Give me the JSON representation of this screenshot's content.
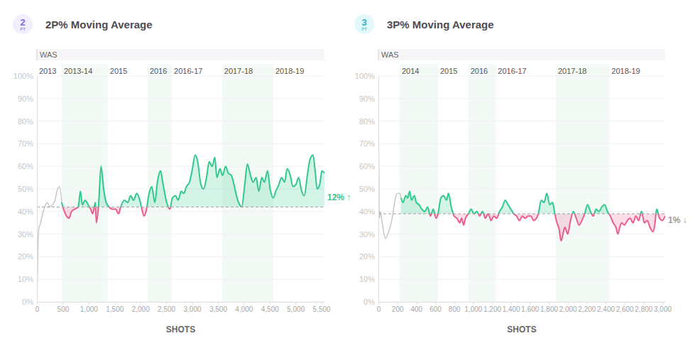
{
  "chart_data": [
    {
      "type": "line",
      "title": "2P% Moving Average",
      "badge": {
        "number": "2",
        "unit": "PT"
      },
      "team": "WAS",
      "x_label": "SHOTS",
      "xlim": [
        0,
        5560
      ],
      "xticks": [
        0,
        500,
        {
          "value": 1000,
          "label": "1,000"
        },
        {
          "value": 1500,
          "label": "1,500"
        },
        {
          "value": 2000,
          "label": "2,000"
        },
        {
          "value": 2500,
          "label": "2,500"
        },
        {
          "value": 3000,
          "label": "3,000"
        },
        {
          "value": 3500,
          "label": "3,500"
        },
        {
          "value": 4000,
          "label": "4,000"
        },
        {
          "value": 4500,
          "label": "4,500"
        },
        {
          "value": 5000,
          "label": "5,000"
        },
        {
          "value": 5500,
          "label": "5,500"
        }
      ],
      "ylim": [
        0,
        100
      ],
      "yticks": [
        {
          "value": 0,
          "label": "0%"
        },
        {
          "value": 10,
          "label": "10%"
        },
        {
          "value": 20,
          "label": "20%"
        },
        {
          "value": 30,
          "label": "30%"
        },
        {
          "value": 40,
          "label": "40%"
        },
        {
          "value": 50,
          "label": "50%"
        },
        {
          "value": 60,
          "label": "60%"
        },
        {
          "value": 70,
          "label": "70%"
        },
        {
          "value": 80,
          "label": "80%"
        },
        {
          "value": 90,
          "label": "90%"
        },
        {
          "value": 100,
          "label": "100%"
        }
      ],
      "grid": true,
      "baseline": 42,
      "annotation": {
        "text": "12% ↑",
        "color": "#2fc88d"
      },
      "bands": [
        {
          "label": "2013",
          "start": 0,
          "end": 480
        },
        {
          "label": "2013-14",
          "start": 480,
          "end": 1370
        },
        {
          "label": "2015",
          "start": 1370,
          "end": 2140
        },
        {
          "label": "2016",
          "start": 2140,
          "end": 2610
        },
        {
          "label": "2016-17",
          "start": 2610,
          "end": 3580
        },
        {
          "label": "2017-18",
          "start": 3580,
          "end": 4570
        },
        {
          "label": "2018-19",
          "start": 4570,
          "end": 5560
        }
      ],
      "series": [
        {
          "color": "#c6c6c6",
          "x": [
            0,
            20,
            40,
            60,
            100,
            150,
            200,
            250,
            300,
            350,
            400,
            440,
            480
          ],
          "values": [
            0,
            25,
            33,
            34,
            38,
            42,
            44,
            42,
            43,
            45,
            50,
            51,
            44
          ]
        },
        {
          "colors": [
            "#2fc88d",
            "#eb5c8d"
          ],
          "x": [
            480,
            490,
            550,
            620,
            670,
            730,
            800,
            840,
            880,
            930,
            990,
            1040,
            1080,
            1130,
            1150,
            1190,
            1240,
            1290,
            1340,
            1400,
            1450,
            1520,
            1580,
            1620,
            1690,
            1760,
            1810,
            1870,
            1930,
            1990,
            2030,
            2070,
            2110,
            2170,
            2220,
            2280,
            2330,
            2390,
            2440,
            2510,
            2570,
            2620,
            2680,
            2730,
            2790,
            2840,
            2890,
            2950,
            3000,
            3060,
            3110,
            3170,
            3220,
            3280,
            3330,
            3390,
            3440,
            3480,
            3540,
            3590,
            3650,
            3700,
            3760,
            3810,
            3870,
            3920,
            3960,
            4020,
            4070,
            4130,
            4180,
            4240,
            4290,
            4350,
            4400,
            4460,
            4510,
            4570,
            4620,
            4680,
            4730,
            4790,
            4840,
            4900,
            4950,
            5010,
            5060,
            5120,
            5170,
            5230,
            5280,
            5340,
            5380,
            5420,
            5470,
            5510,
            5560
          ],
          "values": [
            44,
            43,
            39,
            37,
            40,
            41,
            42,
            49,
            43,
            45,
            43,
            41,
            39,
            44,
            35,
            42,
            60,
            50,
            44,
            42,
            41,
            41,
            39,
            42,
            45,
            44,
            47,
            45,
            48,
            45,
            41,
            38,
            40,
            48,
            51,
            44,
            53,
            58,
            52,
            44,
            41,
            46,
            47,
            45,
            49,
            48,
            51,
            53,
            58,
            65,
            62,
            52,
            50,
            55,
            62,
            60,
            64,
            55,
            59,
            56,
            60,
            57,
            56,
            52,
            46,
            43,
            42,
            52,
            61,
            56,
            53,
            55,
            49,
            55,
            53,
            58,
            50,
            46,
            49,
            52,
            55,
            53,
            59,
            56,
            51,
            52,
            55,
            49,
            47,
            56,
            63,
            65,
            58,
            50,
            52,
            58,
            57
          ]
        }
      ]
    },
    {
      "type": "line",
      "title": "3P% Moving Average",
      "badge": {
        "number": "3",
        "unit": "PT"
      },
      "team": "WAS",
      "x_label": "SHOTS",
      "xlim": [
        0,
        3030
      ],
      "xticks": [
        0,
        200,
        400,
        600,
        800,
        {
          "value": 1000,
          "label": "1,000"
        },
        {
          "value": 1200,
          "label": "1,200"
        },
        {
          "value": 1400,
          "label": "1,400"
        },
        {
          "value": 1600,
          "label": "1,600"
        },
        {
          "value": 1800,
          "label": "1,800"
        },
        {
          "value": 2000,
          "label": "2,000"
        },
        {
          "value": 2200,
          "label": "2,200"
        },
        {
          "value": 2400,
          "label": "2,400"
        },
        {
          "value": 2600,
          "label": "2,600"
        },
        {
          "value": 2800,
          "label": "2,800"
        },
        {
          "value": 3000,
          "label": "3,000"
        }
      ],
      "ylim": [
        0,
        100
      ],
      "yticks": [
        {
          "value": 0,
          "label": "0%"
        },
        {
          "value": 10,
          "label": "10%"
        },
        {
          "value": 20,
          "label": "20%"
        },
        {
          "value": 30,
          "label": "30%"
        },
        {
          "value": 40,
          "label": "40%"
        },
        {
          "value": 50,
          "label": "50%"
        },
        {
          "value": 60,
          "label": "60%"
        },
        {
          "value": 70,
          "label": "70%"
        },
        {
          "value": 80,
          "label": "80%"
        },
        {
          "value": 90,
          "label": "90%"
        },
        {
          "value": 100,
          "label": "100%"
        }
      ],
      "grid": true,
      "baseline": 39,
      "annotation": {
        "text": "1% ↓",
        "color": "#9a9a9a"
      },
      "bands": [
        {
          "label": null,
          "start": 0,
          "end": 225
        },
        {
          "label": "2014",
          "start": 225,
          "end": 630
        },
        {
          "label": "2015",
          "start": 630,
          "end": 950
        },
        {
          "label": "2016",
          "start": 950,
          "end": 1240
        },
        {
          "label": "2016-17",
          "start": 1240,
          "end": 1875
        },
        {
          "label": "2017-18",
          "start": 1875,
          "end": 2440
        },
        {
          "label": "2018-19",
          "start": 2440,
          "end": 3030
        }
      ],
      "series": [
        {
          "color": "#c6c6c6",
          "x": [
            0,
            10,
            20,
            40,
            75,
            100,
            150,
            175,
            200,
            225,
            240
          ],
          "values": [
            100,
            37,
            40,
            35,
            28,
            30,
            38,
            45,
            48,
            48,
            46
          ]
        },
        {
          "colors": [
            "#2fc88d",
            "#eb5c8d"
          ],
          "x": [
            240,
            260,
            290,
            310,
            330,
            350,
            380,
            400,
            430,
            460,
            490,
            520,
            550,
            580,
            610,
            630,
            660,
            690,
            720,
            740,
            770,
            800,
            830,
            860,
            880,
            900,
            920,
            950,
            980,
            1010,
            1040,
            1070,
            1100,
            1130,
            1160,
            1190,
            1220,
            1250,
            1280,
            1310,
            1340,
            1370,
            1400,
            1430,
            1460,
            1490,
            1520,
            1550,
            1580,
            1610,
            1640,
            1670,
            1690,
            1720,
            1750,
            1780,
            1810,
            1840,
            1860,
            1880,
            1910,
            1930,
            1950,
            1970,
            2000,
            2030,
            2060,
            2090,
            2120,
            2150,
            2180,
            2210,
            2240,
            2270,
            2300,
            2330,
            2360,
            2390,
            2420,
            2450,
            2480,
            2510,
            2530,
            2550,
            2570,
            2600,
            2630,
            2660,
            2690,
            2720,
            2750,
            2780,
            2810,
            2840,
            2870,
            2900,
            2920,
            2940,
            2970,
            3000,
            3030
          ],
          "values": [
            46,
            44,
            47,
            46,
            49,
            45,
            47,
            44,
            43,
            41,
            40,
            42,
            38,
            41,
            37,
            39,
            46,
            47,
            45,
            48,
            42,
            38,
            37,
            35,
            37,
            34,
            37,
            39,
            41,
            39,
            40,
            38,
            40,
            37,
            39,
            36,
            38,
            37,
            40,
            42,
            45,
            43,
            41,
            39,
            38,
            36,
            38,
            37,
            38,
            38,
            36,
            37,
            39,
            45,
            44,
            48,
            43,
            44,
            40,
            36,
            32,
            27,
            30,
            33,
            30,
            36,
            40,
            37,
            34,
            36,
            39,
            43,
            40,
            38,
            41,
            40,
            42,
            43,
            40,
            38,
            35,
            33,
            30,
            33,
            35,
            34,
            36,
            37,
            35,
            38,
            36,
            40,
            35,
            36,
            33,
            31,
            34,
            41,
            37,
            36,
            38
          ]
        }
      ]
    }
  ]
}
